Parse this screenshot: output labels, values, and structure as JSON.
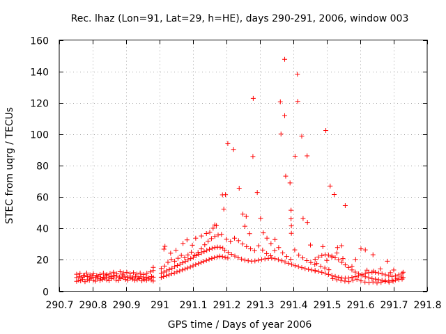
{
  "chart_data": {
    "type": "scatter",
    "title": "Rec. lhaz (Lon=91, Lat=29, h=HE), days 290-291, 2006, window 003",
    "xlabel": "GPS time / Days of year 2006",
    "ylabel": "STEC from uqrg / TECUs",
    "xlim": [
      290.7,
      291.8
    ],
    "ylim": [
      0,
      160
    ],
    "xticks": [
      "290.7",
      "290.8",
      "290.9",
      "291",
      "291.1",
      "291.2",
      "291.3",
      "291.4",
      "291.5",
      "291.6",
      "291.7",
      "291.8"
    ],
    "yticks": [
      "0",
      "20",
      "40",
      "60",
      "80",
      "100",
      "120",
      "140",
      "160"
    ],
    "grid": true,
    "marker": "plus",
    "color": "#ff0000",
    "points": [
      [
        290.752,
        6.3
      ],
      [
        290.758,
        7.1
      ],
      [
        290.764,
        6.6
      ],
      [
        290.77,
        7.6
      ],
      [
        290.777,
        6.1
      ],
      [
        290.784,
        7.3
      ],
      [
        290.79,
        6.9
      ],
      [
        290.796,
        8.2
      ],
      [
        290.802,
        7.0
      ],
      [
        290.808,
        6.4
      ],
      [
        290.815,
        7.8
      ],
      [
        290.822,
        6.8
      ],
      [
        290.829,
        7.4
      ],
      [
        290.836,
        8.1
      ],
      [
        290.842,
        7.2
      ],
      [
        290.849,
        6.7
      ],
      [
        290.856,
        7.9
      ],
      [
        290.863,
        8.4
      ],
      [
        290.87,
        7.1
      ],
      [
        290.877,
        6.8
      ],
      [
        290.884,
        8.0
      ],
      [
        290.891,
        8.6
      ],
      [
        290.898,
        7.5
      ],
      [
        290.905,
        7.0
      ],
      [
        290.912,
        8.2
      ],
      [
        290.919,
        7.7
      ],
      [
        290.926,
        6.9
      ],
      [
        290.933,
        7.3
      ],
      [
        290.94,
        8.0
      ],
      [
        290.947,
        6.6
      ],
      [
        290.954,
        7.4
      ],
      [
        290.961,
        6.9
      ],
      [
        290.968,
        7.8
      ],
      [
        290.975,
        7.2
      ],
      [
        290.981,
        6.5
      ],
      [
        290.752,
        8.7
      ],
      [
        290.76,
        9.4
      ],
      [
        290.768,
        8.9
      ],
      [
        290.776,
        10.1
      ],
      [
        290.784,
        9.3
      ],
      [
        290.792,
        8.6
      ],
      [
        290.8,
        9.7
      ],
      [
        290.808,
        8.8
      ],
      [
        290.816,
        9.5
      ],
      [
        290.824,
        8.4
      ],
      [
        290.832,
        8.9
      ],
      [
        290.84,
        9.9
      ],
      [
        290.848,
        8.7
      ],
      [
        290.856,
        9.3
      ],
      [
        290.864,
        10.2
      ],
      [
        290.872,
        9.6
      ],
      [
        290.88,
        9.0
      ],
      [
        290.888,
        10.4
      ],
      [
        290.896,
        9.5
      ],
      [
        290.904,
        8.8
      ],
      [
        290.912,
        9.6
      ],
      [
        290.92,
        8.7
      ],
      [
        290.928,
        9.4
      ],
      [
        290.936,
        8.5
      ],
      [
        290.944,
        9.2
      ],
      [
        290.952,
        8.3
      ],
      [
        290.96,
        9.0
      ],
      [
        290.968,
        8.5
      ],
      [
        290.976,
        9.3
      ],
      [
        290.981,
        8.9
      ],
      [
        290.752,
        10.8
      ],
      [
        290.762,
        11.3
      ],
      [
        290.772,
        10.1
      ],
      [
        290.782,
        11.6
      ],
      [
        290.792,
        10.4
      ],
      [
        290.802,
        11.1
      ],
      [
        290.812,
        10.0
      ],
      [
        290.822,
        10.7
      ],
      [
        290.832,
        11.5
      ],
      [
        290.842,
        10.6
      ],
      [
        290.852,
        11.2
      ],
      [
        290.862,
        12.1
      ],
      [
        290.872,
        11.0
      ],
      [
        290.882,
        12.4
      ],
      [
        290.892,
        11.7
      ],
      [
        290.902,
        12.0
      ],
      [
        290.912,
        11.1
      ],
      [
        290.922,
        11.8
      ],
      [
        290.932,
        10.9
      ],
      [
        290.942,
        11.6
      ],
      [
        290.952,
        10.7
      ],
      [
        290.962,
        11.4
      ],
      [
        290.972,
        12.3
      ],
      [
        290.981,
        13.2
      ],
      [
        290.981,
        15.2
      ],
      [
        291.005,
        8.8
      ],
      [
        291.012,
        9.3
      ],
      [
        291.02,
        9.9
      ],
      [
        291.028,
        10.4
      ],
      [
        291.036,
        11.1
      ],
      [
        291.044,
        11.6
      ],
      [
        291.052,
        12.3
      ],
      [
        291.06,
        12.9
      ],
      [
        291.068,
        13.6
      ],
      [
        291.076,
        14.1
      ],
      [
        291.084,
        14.8
      ],
      [
        291.092,
        15.4
      ],
      [
        291.1,
        16.2
      ],
      [
        291.108,
        16.9
      ],
      [
        291.116,
        17.6
      ],
      [
        291.124,
        18.3
      ],
      [
        291.132,
        19.0
      ],
      [
        291.14,
        19.6
      ],
      [
        291.148,
        20.3
      ],
      [
        291.156,
        20.9
      ],
      [
        291.164,
        21.4
      ],
      [
        291.172,
        21.9
      ],
      [
        291.18,
        22.3
      ],
      [
        291.188,
        22.0
      ],
      [
        291.196,
        21.5
      ],
      [
        291.204,
        21.1
      ],
      [
        291.005,
        11.4
      ],
      [
        291.013,
        12.2
      ],
      [
        291.021,
        13.0
      ],
      [
        291.029,
        13.8
      ],
      [
        291.037,
        14.7
      ],
      [
        291.045,
        15.5
      ],
      [
        291.053,
        16.4
      ],
      [
        291.061,
        17.2
      ],
      [
        291.069,
        18.1
      ],
      [
        291.077,
        19.0
      ],
      [
        291.085,
        19.9
      ],
      [
        291.093,
        20.8
      ],
      [
        291.101,
        21.7
      ],
      [
        291.109,
        22.6
      ],
      [
        291.117,
        23.5
      ],
      [
        291.125,
        24.4
      ],
      [
        291.133,
        25.2
      ],
      [
        291.141,
        26.0
      ],
      [
        291.149,
        26.7
      ],
      [
        291.157,
        27.3
      ],
      [
        291.165,
        27.8
      ],
      [
        291.173,
        28.1
      ],
      [
        291.181,
        28.0
      ],
      [
        291.189,
        27.5
      ],
      [
        291.005,
        14.5
      ],
      [
        291.015,
        16.0
      ],
      [
        291.025,
        18.4
      ],
      [
        291.035,
        20.2
      ],
      [
        291.045,
        19.1
      ],
      [
        291.055,
        21.0
      ],
      [
        291.065,
        22.8
      ],
      [
        291.075,
        21.4
      ],
      [
        291.085,
        23.1
      ],
      [
        291.095,
        24.9
      ],
      [
        291.105,
        22.9
      ],
      [
        291.115,
        24.7
      ],
      [
        291.125,
        27.0
      ],
      [
        291.135,
        29.6
      ],
      [
        291.145,
        31.8
      ],
      [
        291.155,
        33.5
      ],
      [
        291.165,
        34.9
      ],
      [
        291.175,
        35.8
      ],
      [
        291.185,
        36.2
      ],
      [
        291.013,
        26.8
      ],
      [
        291.016,
        28.6
      ],
      [
        291.033,
        24.2
      ],
      [
        291.049,
        26.1
      ],
      [
        291.07,
        30.4
      ],
      [
        291.082,
        32.7
      ],
      [
        291.098,
        29.3
      ],
      [
        291.108,
        33.8
      ],
      [
        291.125,
        35.2
      ],
      [
        291.14,
        36.8
      ],
      [
        291.15,
        37.5
      ],
      [
        291.16,
        40.1
      ],
      [
        291.17,
        41.8
      ],
      [
        291.165,
        42.2
      ],
      [
        291.195,
        26.0
      ],
      [
        291.205,
        24.7
      ],
      [
        291.215,
        23.5
      ],
      [
        291.225,
        22.4
      ],
      [
        291.235,
        21.3
      ],
      [
        291.245,
        20.5
      ],
      [
        291.255,
        19.8
      ],
      [
        291.265,
        19.4
      ],
      [
        291.275,
        19.1
      ],
      [
        291.285,
        19.3
      ],
      [
        291.295,
        19.7
      ],
      [
        291.305,
        20.2
      ],
      [
        291.315,
        20.6
      ],
      [
        291.325,
        20.9
      ],
      [
        291.335,
        21.1
      ],
      [
        291.345,
        20.7
      ],
      [
        291.355,
        20.1
      ],
      [
        291.365,
        19.4
      ],
      [
        291.375,
        18.6
      ],
      [
        291.385,
        17.8
      ],
      [
        291.395,
        17.0
      ],
      [
        291.405,
        16.3
      ],
      [
        291.415,
        15.6
      ],
      [
        291.425,
        15.0
      ],
      [
        291.435,
        14.4
      ],
      [
        291.445,
        13.9
      ],
      [
        291.455,
        13.5
      ],
      [
        291.465,
        13.2
      ],
      [
        291.2,
        33.1
      ],
      [
        291.212,
        31.6
      ],
      [
        291.224,
        33.8
      ],
      [
        291.236,
        32.2
      ],
      [
        291.248,
        30.1
      ],
      [
        291.26,
        28.4
      ],
      [
        291.272,
        27.0
      ],
      [
        291.284,
        25.8
      ],
      [
        291.296,
        28.9
      ],
      [
        291.308,
        26.2
      ],
      [
        291.32,
        24.0
      ],
      [
        291.332,
        22.6
      ],
      [
        291.344,
        25.9
      ],
      [
        291.356,
        27.8
      ],
      [
        291.368,
        24.4
      ],
      [
        291.38,
        22.1
      ],
      [
        291.392,
        20.4
      ],
      [
        291.404,
        26.3
      ],
      [
        291.416,
        23.0
      ],
      [
        291.428,
        21.2
      ],
      [
        291.44,
        19.5
      ],
      [
        291.452,
        18.3
      ],
      [
        291.464,
        17.0
      ],
      [
        291.188,
        61.4
      ],
      [
        291.197,
        61.5
      ],
      [
        291.192,
        52.3
      ],
      [
        291.204,
        94.0
      ],
      [
        291.221,
        90.3
      ],
      [
        291.238,
        65.6
      ],
      [
        291.249,
        49.1
      ],
      [
        291.259,
        47.6
      ],
      [
        291.255,
        41.4
      ],
      [
        291.269,
        36.7
      ],
      [
        291.28,
        122.8
      ],
      [
        291.279,
        85.8
      ],
      [
        291.292,
        62.9
      ],
      [
        291.302,
        46.4
      ],
      [
        291.31,
        37.2
      ],
      [
        291.321,
        33.8
      ],
      [
        291.333,
        30.3
      ],
      [
        291.345,
        32.9
      ],
      [
        291.361,
        120.6
      ],
      [
        291.363,
        100.1
      ],
      [
        291.374,
        147.7
      ],
      [
        291.374,
        111.8
      ],
      [
        291.377,
        73.3
      ],
      [
        291.39,
        69.0
      ],
      [
        291.393,
        51.6
      ],
      [
        291.393,
        46.1
      ],
      [
        291.394,
        41.6
      ],
      [
        291.394,
        36.9
      ],
      [
        291.405,
        86.0
      ],
      [
        291.412,
        138.2
      ],
      [
        291.413,
        120.9
      ],
      [
        291.425,
        98.7
      ],
      [
        291.429,
        46.3
      ],
      [
        291.441,
        86.2
      ],
      [
        291.442,
        43.8
      ],
      [
        291.451,
        29.4
      ],
      [
        291.497,
        102.4
      ],
      [
        291.51,
        67.0
      ],
      [
        291.522,
        61.6
      ],
      [
        291.532,
        27.8
      ],
      [
        291.544,
        29.0
      ],
      [
        291.555,
        54.5
      ],
      [
        291.586,
        20.2
      ],
      [
        291.602,
        27.0
      ],
      [
        291.615,
        26.3
      ],
      [
        291.638,
        23.2
      ],
      [
        291.681,
        19.1
      ],
      [
        291.465,
        20.4
      ],
      [
        291.475,
        21.8
      ],
      [
        291.485,
        22.7
      ],
      [
        291.495,
        23.2
      ],
      [
        291.505,
        23.0
      ],
      [
        291.515,
        22.4
      ],
      [
        291.525,
        21.3
      ],
      [
        291.535,
        20.0
      ],
      [
        291.545,
        18.4
      ],
      [
        291.555,
        16.8
      ],
      [
        291.565,
        15.1
      ],
      [
        291.575,
        13.6
      ],
      [
        291.585,
        12.2
      ],
      [
        291.595,
        11.0
      ],
      [
        291.605,
        10.0
      ],
      [
        291.615,
        9.2
      ],
      [
        291.625,
        8.6
      ],
      [
        291.635,
        8.1
      ],
      [
        291.645,
        7.7
      ],
      [
        291.655,
        7.3
      ],
      [
        291.665,
        7.0
      ],
      [
        291.675,
        6.7
      ],
      [
        291.685,
        6.5
      ],
      [
        291.695,
        6.8
      ],
      [
        291.705,
        7.1
      ],
      [
        291.715,
        7.4
      ],
      [
        291.725,
        7.7
      ],
      [
        291.465,
        12.9
      ],
      [
        291.475,
        12.5
      ],
      [
        291.485,
        12.0
      ],
      [
        291.495,
        11.4
      ],
      [
        291.505,
        10.7
      ],
      [
        291.515,
        10.1
      ],
      [
        291.525,
        9.4
      ],
      [
        291.535,
        8.9
      ],
      [
        291.545,
        8.5
      ],
      [
        291.555,
        8.3
      ],
      [
        291.565,
        8.4
      ],
      [
        291.575,
        8.8
      ],
      [
        291.585,
        9.3
      ],
      [
        291.595,
        9.9
      ],
      [
        291.605,
        10.6
      ],
      [
        291.615,
        11.3
      ],
      [
        291.625,
        11.8
      ],
      [
        291.635,
        12.1
      ],
      [
        291.645,
        12.0
      ],
      [
        291.655,
        11.6
      ],
      [
        291.665,
        11.0
      ],
      [
        291.675,
        10.4
      ],
      [
        291.685,
        9.8
      ],
      [
        291.695,
        9.4
      ],
      [
        291.705,
        9.8
      ],
      [
        291.715,
        10.4
      ],
      [
        291.725,
        11.3
      ],
      [
        291.47,
        17.6
      ],
      [
        291.482,
        15.9
      ],
      [
        291.494,
        14.8
      ],
      [
        291.506,
        13.7
      ],
      [
        291.518,
        8.0
      ],
      [
        291.53,
        7.3
      ],
      [
        291.542,
        6.8
      ],
      [
        291.554,
        6.4
      ],
      [
        291.566,
        6.1
      ],
      [
        291.578,
        6.9
      ],
      [
        291.59,
        7.6
      ],
      [
        291.602,
        6.6
      ],
      [
        291.614,
        5.8
      ],
      [
        291.626,
        5.4
      ],
      [
        291.638,
        5.9
      ],
      [
        291.65,
        5.2
      ],
      [
        291.662,
        5.6
      ],
      [
        291.674,
        6.2
      ],
      [
        291.686,
        5.7
      ],
      [
        291.698,
        6.4
      ],
      [
        291.71,
        7.9
      ],
      [
        291.722,
        9.1
      ],
      [
        291.728,
        12.1
      ],
      [
        291.728,
        8.7
      ],
      [
        291.7,
        13.5
      ],
      [
        291.69,
        11.8
      ],
      [
        291.66,
        14.2
      ],
      [
        291.64,
        12.8
      ],
      [
        291.62,
        13.4
      ],
      [
        291.575,
        15.8
      ],
      [
        291.548,
        20.8
      ],
      [
        291.53,
        24.3
      ],
      [
        291.515,
        21.8
      ],
      [
        291.5,
        19.6
      ],
      [
        291.488,
        28.4
      ]
    ]
  }
}
